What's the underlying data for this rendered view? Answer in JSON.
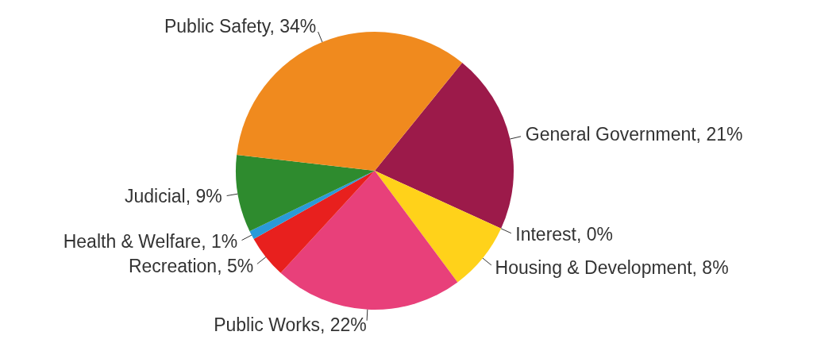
{
  "chart_data": {
    "type": "pie",
    "categories": [
      "General Government",
      "Interest",
      "Housing & Development",
      "Public Works",
      "Recreation",
      "Health & Welfare",
      "Judicial",
      "Public Safety"
    ],
    "values": [
      21,
      0,
      8,
      22,
      5,
      1,
      9,
      34
    ],
    "value_labels": [
      "21%",
      "0%",
      "8%",
      "22%",
      "5%",
      "1%",
      "9%",
      "34%"
    ],
    "colors": [
      "#9c1a4a",
      "#6a3d9a",
      "#ffd21a",
      "#e8407a",
      "#e8201e",
      "#2a9ad8",
      "#2e8b2e",
      "#f08a1e"
    ]
  }
}
